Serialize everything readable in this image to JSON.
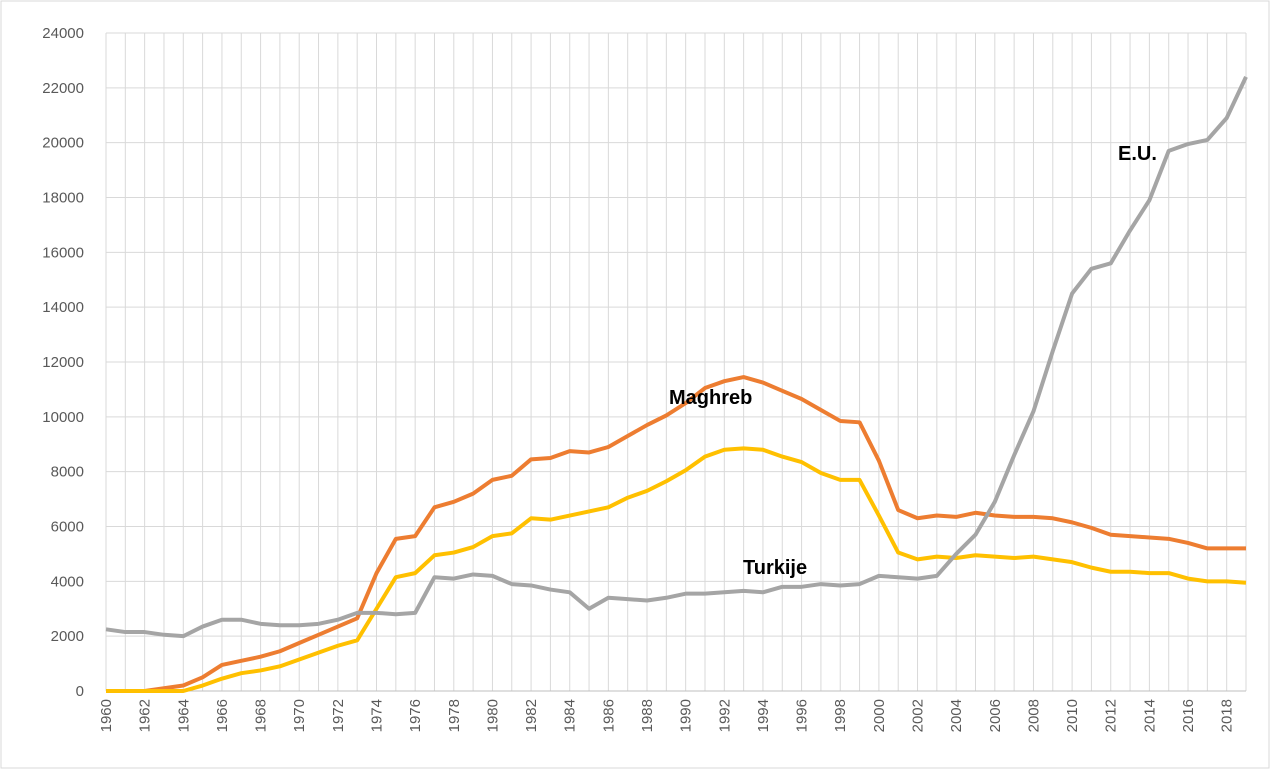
{
  "chart_data": {
    "type": "line",
    "x": [
      1960,
      1961,
      1962,
      1963,
      1964,
      1965,
      1966,
      1967,
      1968,
      1969,
      1970,
      1971,
      1972,
      1973,
      1974,
      1975,
      1976,
      1977,
      1978,
      1979,
      1980,
      1981,
      1982,
      1983,
      1984,
      1985,
      1986,
      1987,
      1988,
      1989,
      1990,
      1991,
      1992,
      1993,
      1994,
      1995,
      1996,
      1997,
      1998,
      1999,
      2000,
      2001,
      2002,
      2003,
      2004,
      2005,
      2006,
      2007,
      2008,
      2009,
      2010,
      2011,
      2012,
      2013,
      2014,
      2015,
      2016,
      2017,
      2018,
      2019
    ],
    "series": [
      {
        "color": "#ed7d31",
        "values": [
          0,
          0,
          0,
          100,
          200,
          500,
          950,
          1100,
          1250,
          1450,
          1750,
          2050,
          2350,
          2650,
          4300,
          5550,
          5650,
          6700,
          6900,
          7200,
          7700,
          7850,
          8450,
          8500,
          8750,
          8700,
          8900,
          9300,
          9700,
          10050,
          10500,
          11050,
          11300,
          11450,
          11250,
          10950,
          10650,
          10250,
          9850,
          9800,
          8400,
          6600,
          6300,
          6400,
          6350,
          6500,
          6400,
          6350,
          6350,
          6300,
          6150,
          5950,
          5700,
          5650,
          5600,
          5550,
          5400,
          5200,
          5200,
          5200
        ]
      },
      {
        "color": "#ffc000",
        "values": [
          0,
          0,
          0,
          0,
          0,
          200,
          450,
          650,
          750,
          900,
          1150,
          1400,
          1650,
          1850,
          3000,
          4150,
          4300,
          4950,
          5050,
          5250,
          5650,
          5750,
          6300,
          6250,
          6400,
          6550,
          6700,
          7050,
          7300,
          7650,
          8050,
          8550,
          8800,
          8850,
          8800,
          8550,
          8350,
          7950,
          7700,
          7700,
          6400,
          5050,
          4800,
          4900,
          4850,
          4950,
          4900,
          4850,
          4900,
          4800,
          4700,
          4500,
          4350,
          4350,
          4300,
          4300,
          4100,
          4000,
          4000,
          3950
        ]
      },
      {
        "color": "#a5a5a5",
        "values": [
          2250,
          2150,
          2150,
          2050,
          2000,
          2350,
          2600,
          2600,
          2450,
          2400,
          2400,
          2450,
          2600,
          2850,
          2850,
          2800,
          2850,
          4150,
          4100,
          4250,
          4200,
          3900,
          3850,
          3700,
          3600,
          3000,
          3400,
          3350,
          3300,
          3400,
          3550,
          3550,
          3600,
          3650,
          3600,
          3800,
          3800,
          3900,
          3850,
          3900,
          4200,
          4150,
          4100,
          4200,
          5000,
          5700,
          6900,
          8600,
          10200,
          12400,
          14500,
          15400,
          15600,
          16800,
          17900,
          19700,
          19950,
          20100,
          20900,
          22400
        ]
      }
    ],
    "annotations": [
      "E.U.",
      "Maghreb",
      "Turkije"
    ],
    "xlim": [
      1960,
      2019
    ],
    "xticks": [
      1960,
      1962,
      1964,
      1966,
      1968,
      1970,
      1972,
      1974,
      1976,
      1978,
      1980,
      1982,
      1984,
      1986,
      1988,
      1990,
      1992,
      1994,
      1996,
      1998,
      2000,
      2002,
      2004,
      2006,
      2008,
      2010,
      2012,
      2014,
      2016,
      2018
    ],
    "ylim": [
      0,
      24000
    ],
    "yticks": [
      0,
      2000,
      4000,
      6000,
      8000,
      10000,
      12000,
      14000,
      16000,
      18000,
      20000,
      22000,
      24000
    ],
    "grid": true
  }
}
